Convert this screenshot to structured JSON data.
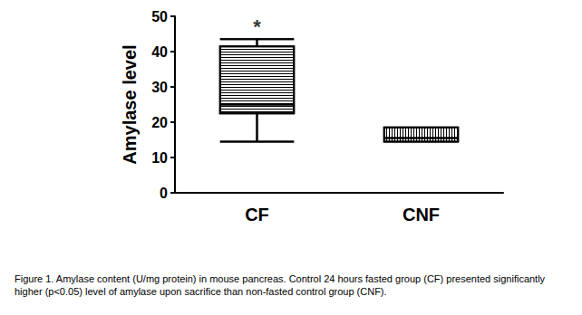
{
  "chart_data": {
    "type": "boxplot",
    "y_label": "Amylase level",
    "categories": [
      "CF",
      "CNF"
    ],
    "values": [
      [
        14.5,
        22.5,
        25,
        41.5,
        43.5
      ],
      [
        14.5,
        14.5,
        15.5,
        18.5,
        18.5
      ]
    ],
    "color": "#000000",
    "ylim": [
      0,
      50
    ],
    "yticks": [
      0,
      10,
      20,
      30,
      40,
      50
    ],
    "grid": false,
    "annotations": [
      {
        "text": "*",
        "x": "CF",
        "y": 47
      }
    ],
    "caption": "Figure 1. Amylase content (U/mg protein) in mouse pancreas. Control 24 hours fasted group (CF) presented significantly higher (p<0.05) level of amylase upon sacrifice than non-fasted control group (CNF)."
  }
}
